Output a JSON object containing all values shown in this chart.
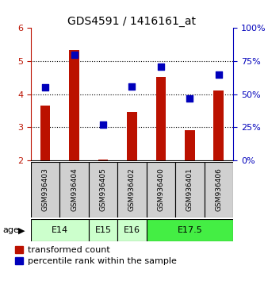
{
  "title": "GDS4591 / 1416161_at",
  "samples": [
    "GSM936403",
    "GSM936404",
    "GSM936405",
    "GSM936402",
    "GSM936400",
    "GSM936401",
    "GSM936406"
  ],
  "red_values": [
    3.65,
    5.33,
    2.02,
    3.47,
    4.52,
    2.91,
    4.12
  ],
  "blue_values_pct": [
    55,
    80,
    27,
    56,
    71,
    47,
    65
  ],
  "ylim_left": [
    2,
    6
  ],
  "ylim_right": [
    0,
    100
  ],
  "yticks_left": [
    2,
    3,
    4,
    5,
    6
  ],
  "yticks_right": [
    0,
    25,
    50,
    75,
    100
  ],
  "age_groups": [
    {
      "label": "E14",
      "cols": [
        0,
        1
      ],
      "color": "#ccffcc"
    },
    {
      "label": "E15",
      "cols": [
        2
      ],
      "color": "#ccffcc"
    },
    {
      "label": "E16",
      "cols": [
        3
      ],
      "color": "#ccffcc"
    },
    {
      "label": "E17.5",
      "cols": [
        4,
        5,
        6
      ],
      "color": "#44ee44"
    }
  ],
  "bar_color": "#bb1100",
  "dot_color": "#0000bb",
  "gsm_bg": "#d0d0d0",
  "title_fontsize": 10,
  "tick_fontsize": 8,
  "legend_fontsize": 8,
  "bar_width": 0.35,
  "dot_size": 30
}
